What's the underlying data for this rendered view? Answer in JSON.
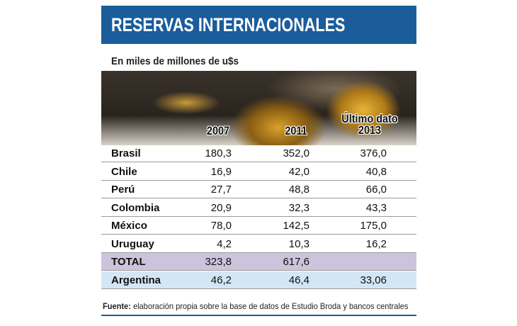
{
  "header": {
    "title": "RESERVAS INTERNACIONALES",
    "subtitle": "En miles de millones de u$s"
  },
  "table": {
    "columns": [
      "2007",
      "2011",
      "Último dato 2013"
    ],
    "rows": [
      [
        "Brasil",
        "180,3",
        "352,0",
        "376,0"
      ],
      [
        "Chile",
        "16,9",
        "42,0",
        "40,8"
      ],
      [
        "Perú",
        "27,7",
        "48,8",
        "66,0"
      ],
      [
        "Colombia",
        "20,9",
        "32,3",
        "43,3"
      ],
      [
        "México",
        "78,0",
        "142,5",
        "175,0"
      ],
      [
        "Uruguay",
        "4,2",
        "10,3",
        "16,2"
      ],
      [
        "TOTAL",
        "323,8",
        "617,6"
      ],
      [
        "Argentina",
        "46,2",
        "46,4",
        "33,06"
      ]
    ]
  },
  "source": {
    "label": "Fuente:",
    "text": "elaboración propia sobre la base de datos de Estudio Broda y bancos centrales"
  }
}
